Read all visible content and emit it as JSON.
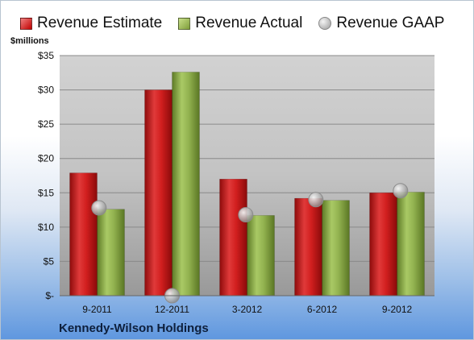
{
  "chart_data": {
    "type": "bar",
    "unit_label": "$millions",
    "categories": [
      "9-2011",
      "12-2011",
      "3-2012",
      "6-2012",
      "9-2012"
    ],
    "series": [
      {
        "name": "Revenue Estimate",
        "kind": "bar",
        "color": "#c41a1a",
        "values": [
          17.9,
          30.0,
          17.0,
          14.2,
          15.0
        ]
      },
      {
        "name": "Revenue Actual",
        "kind": "bar",
        "color": "#8aab44",
        "values": [
          12.6,
          32.6,
          11.7,
          13.9,
          15.1
        ]
      },
      {
        "name": "Revenue GAAP",
        "kind": "marker",
        "color": "#a8a8a8",
        "values": [
          12.8,
          0.0,
          11.8,
          14.0,
          15.3
        ]
      }
    ],
    "ylim": [
      0,
      35
    ],
    "yticks": [
      0,
      5,
      10,
      15,
      20,
      25,
      30,
      35
    ],
    "ytick_labels": [
      "$-",
      "$5",
      "$10",
      "$15",
      "$20",
      "$25",
      "$30",
      "$35"
    ],
    "grid": true,
    "legend": "top",
    "company": "Kennedy-Wilson Holdings"
  }
}
